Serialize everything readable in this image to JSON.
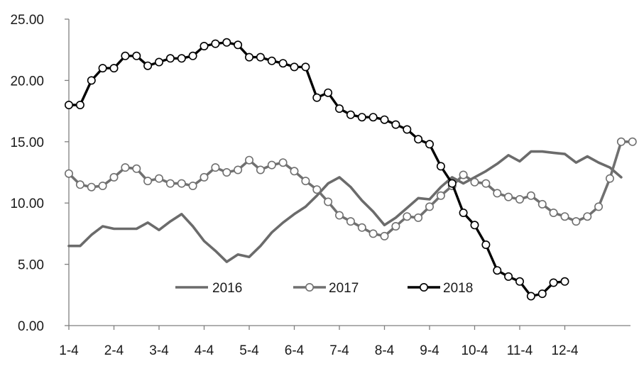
{
  "chart_data": {
    "type": "line",
    "ylim": [
      0,
      25
    ],
    "y_ticks": [
      "0.00",
      "5.00",
      "10.00",
      "15.00",
      "20.00",
      "25.00"
    ],
    "x_ticks": [
      "1-4",
      "2-4",
      "3-4",
      "4-4",
      "5-4",
      "6-4",
      "7-4",
      "8-4",
      "9-4",
      "10-4",
      "11-4",
      "12-4"
    ],
    "grid": false,
    "legend_position": "bottom-center",
    "series": [
      {
        "name": "2016",
        "color": "#6b6b6b",
        "marker": "none",
        "points": [
          [
            0,
            6.5
          ],
          [
            0.25,
            6.5
          ],
          [
            0.5,
            7.4
          ],
          [
            0.75,
            8.1
          ],
          [
            1,
            7.9
          ],
          [
            1.25,
            7.9
          ],
          [
            1.5,
            7.9
          ],
          [
            1.75,
            8.4
          ],
          [
            2,
            7.8
          ],
          [
            2.25,
            8.5
          ],
          [
            2.5,
            9.1
          ],
          [
            2.75,
            8.1
          ],
          [
            3,
            6.9
          ],
          [
            3.25,
            6.1
          ],
          [
            3.5,
            5.2
          ],
          [
            3.75,
            5.8
          ],
          [
            4,
            5.6
          ],
          [
            4.25,
            6.5
          ],
          [
            4.5,
            7.6
          ],
          [
            4.75,
            8.4
          ],
          [
            5,
            9.1
          ],
          [
            5.25,
            9.7
          ],
          [
            5.5,
            10.6
          ],
          [
            5.75,
            11.6
          ],
          [
            6,
            12.1
          ],
          [
            6.25,
            11.3
          ],
          [
            6.5,
            10.2
          ],
          [
            6.75,
            9.3
          ],
          [
            7,
            8.2
          ],
          [
            7.25,
            8.8
          ],
          [
            7.5,
            9.6
          ],
          [
            7.75,
            10.4
          ],
          [
            8,
            10.3
          ],
          [
            8.25,
            11.3
          ],
          [
            8.5,
            12.1
          ],
          [
            8.75,
            11.6
          ],
          [
            9,
            12.1
          ],
          [
            9.25,
            12.6
          ],
          [
            9.5,
            13.2
          ],
          [
            9.75,
            13.9
          ],
          [
            10,
            13.4
          ],
          [
            10.25,
            14.2
          ],
          [
            10.5,
            14.2
          ],
          [
            10.75,
            14.1
          ],
          [
            11,
            14.0
          ],
          [
            11.25,
            13.3
          ],
          [
            11.5,
            13.8
          ],
          [
            11.75,
            13.3
          ],
          [
            12,
            12.9
          ],
          [
            12.25,
            12.1
          ]
        ]
      },
      {
        "name": "2017",
        "color": "#707070",
        "marker": "circle-open",
        "points": [
          [
            0,
            12.4
          ],
          [
            0.25,
            11.5
          ],
          [
            0.5,
            11.3
          ],
          [
            0.75,
            11.4
          ],
          [
            1,
            12.1
          ],
          [
            1.25,
            12.9
          ],
          [
            1.5,
            12.8
          ],
          [
            1.75,
            11.8
          ],
          [
            2,
            12.0
          ],
          [
            2.25,
            11.6
          ],
          [
            2.5,
            11.6
          ],
          [
            2.75,
            11.4
          ],
          [
            3,
            12.1
          ],
          [
            3.25,
            12.9
          ],
          [
            3.5,
            12.5
          ],
          [
            3.75,
            12.7
          ],
          [
            4,
            13.5
          ],
          [
            4.25,
            12.7
          ],
          [
            4.5,
            13.1
          ],
          [
            4.75,
            13.3
          ],
          [
            5,
            12.6
          ],
          [
            5.25,
            11.8
          ],
          [
            5.5,
            11.1
          ],
          [
            5.75,
            10.1
          ],
          [
            6,
            9.0
          ],
          [
            6.25,
            8.5
          ],
          [
            6.5,
            8.0
          ],
          [
            6.75,
            7.5
          ],
          [
            7,
            7.3
          ],
          [
            7.25,
            8.1
          ],
          [
            7.5,
            8.9
          ],
          [
            7.75,
            8.8
          ],
          [
            8,
            9.7
          ],
          [
            8.25,
            10.6
          ],
          [
            8.5,
            11.4
          ],
          [
            8.75,
            12.3
          ],
          [
            9,
            11.7
          ],
          [
            9.25,
            11.6
          ],
          [
            9.5,
            10.8
          ],
          [
            9.75,
            10.5
          ],
          [
            10,
            10.3
          ],
          [
            10.25,
            10.6
          ],
          [
            10.5,
            9.9
          ],
          [
            10.75,
            9.2
          ],
          [
            11,
            8.9
          ],
          [
            11.25,
            8.5
          ],
          [
            11.5,
            8.9
          ],
          [
            11.75,
            9.7
          ],
          [
            12,
            12.0
          ],
          [
            12.25,
            15.0
          ],
          [
            12.5,
            15.0
          ]
        ]
      },
      {
        "name": "2018",
        "color": "#000000",
        "marker": "circle-open",
        "points": [
          [
            0,
            18.0
          ],
          [
            0.25,
            18.0
          ],
          [
            0.5,
            20.0
          ],
          [
            0.75,
            21.0
          ],
          [
            1,
            21.0
          ],
          [
            1.25,
            22.0
          ],
          [
            1.5,
            22.0
          ],
          [
            1.75,
            21.2
          ],
          [
            2,
            21.5
          ],
          [
            2.25,
            21.8
          ],
          [
            2.5,
            21.8
          ],
          [
            2.75,
            22.0
          ],
          [
            3,
            22.8
          ],
          [
            3.25,
            23.0
          ],
          [
            3.5,
            23.1
          ],
          [
            3.75,
            22.9
          ],
          [
            4,
            21.9
          ],
          [
            4.25,
            21.9
          ],
          [
            4.5,
            21.6
          ],
          [
            4.75,
            21.4
          ],
          [
            5,
            21.1
          ],
          [
            5.25,
            21.1
          ],
          [
            5.5,
            18.6
          ],
          [
            5.75,
            19.0
          ],
          [
            6,
            17.7
          ],
          [
            6.25,
            17.2
          ],
          [
            6.5,
            17.0
          ],
          [
            6.75,
            17.0
          ],
          [
            7,
            16.8
          ],
          [
            7.25,
            16.4
          ],
          [
            7.5,
            16.0
          ],
          [
            7.75,
            15.2
          ],
          [
            8,
            14.8
          ],
          [
            8.25,
            13.0
          ],
          [
            8.5,
            11.6
          ],
          [
            8.75,
            9.2
          ],
          [
            9,
            8.2
          ],
          [
            9.25,
            6.6
          ],
          [
            9.5,
            4.5
          ],
          [
            9.75,
            4.0
          ],
          [
            10,
            3.6
          ],
          [
            10.25,
            2.4
          ],
          [
            10.5,
            2.6
          ],
          [
            10.75,
            3.5
          ],
          [
            11,
            3.6
          ]
        ]
      }
    ]
  }
}
